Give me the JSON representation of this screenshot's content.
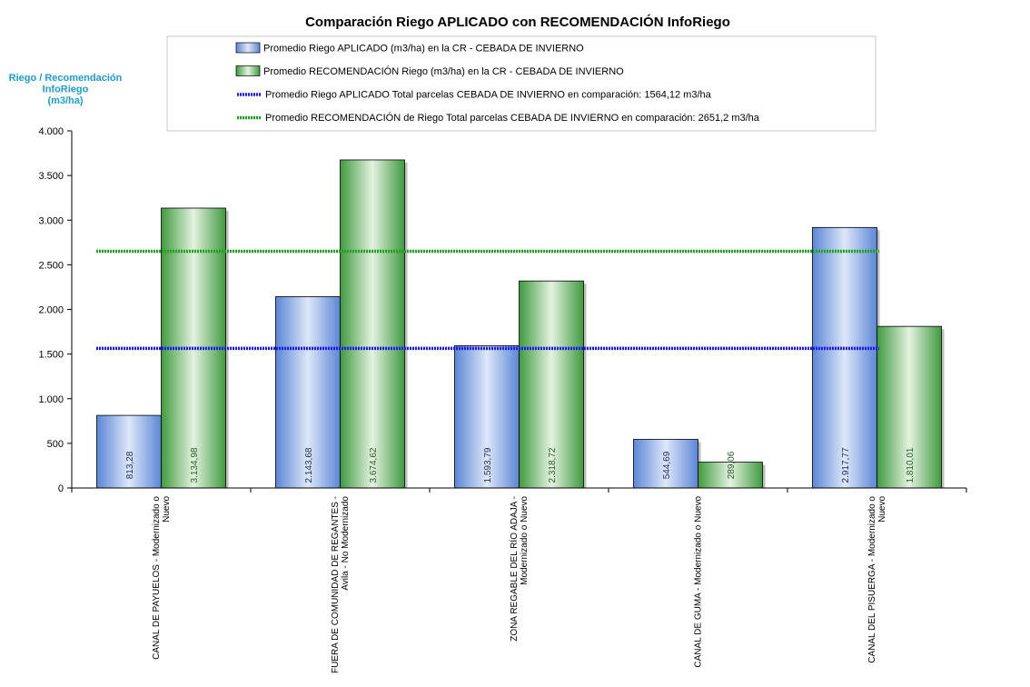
{
  "chart_data": {
    "type": "bar",
    "title": "Comparación Riego APLICADO con RECOMENDACIÓN InfoRiego",
    "ylabel": [
      "Riego / Recomendación",
      "InfoRiego",
      "(m3/ha)"
    ],
    "ylim": [
      0,
      4000
    ],
    "yticks": [
      0,
      500,
      1000,
      1500,
      2000,
      2500,
      3000,
      3500,
      4000
    ],
    "ytick_labels": [
      "0",
      "500",
      "1.000",
      "1.500",
      "2.000",
      "2.500",
      "3.000",
      "3.500",
      "4.000"
    ],
    "categories": [
      [
        "CANAL DE PAYUELOS - Modernizado o",
        "Nuevo"
      ],
      [
        "FUERA DE COMUNIDAD DE REGANTES -",
        "Avila - No Modernizado"
      ],
      [
        "ZONA REGABLE DEL RÍO ADAJA -",
        "Modernizado o Nuevo"
      ],
      [
        "CANAL DE GUMA - Modernizado o Nuevo"
      ],
      [
        "CANAL DEL PISUERGA - Modernizado o",
        "Nuevo"
      ]
    ],
    "series": [
      {
        "name": "Promedio Riego APLICADO (m3/ha) en la CR - CEBADA DE INVIERNO",
        "values": [
          813.28,
          2143.68,
          1593.79,
          544.69,
          2917.77
        ],
        "labels": [
          "813,28",
          "2.143,68",
          "1.593,79",
          "544,69",
          "2.917,77"
        ],
        "color": "#5b86d6"
      },
      {
        "name": "Promedio RECOMENDACIÓN Riego (m3/ha) en la CR - CEBADA DE INVIERNO",
        "values": [
          3134.98,
          3674.62,
          2318.72,
          289.06,
          1810.01
        ],
        "labels": [
          "3.134,98",
          "3.674,62",
          "2.318,72",
          "289,06",
          "1.810,01"
        ],
        "color": "#3f9a3f"
      }
    ],
    "reference_lines": [
      {
        "name": "Promedio Riego APLICADO Total parcelas CEBADA DE INVIERNO en comparación:  1564,12 m3/ha",
        "value": 1564.12,
        "color": "#1a1aff"
      },
      {
        "name": "Promedio RECOMENDACIÓN de Riego Total parcelas CEBADA DE INVIERNO en comparación: 2651,2 m3/ha",
        "value": 2651.2,
        "color": "#22a022"
      }
    ],
    "legend_position": "top",
    "grid": false
  }
}
